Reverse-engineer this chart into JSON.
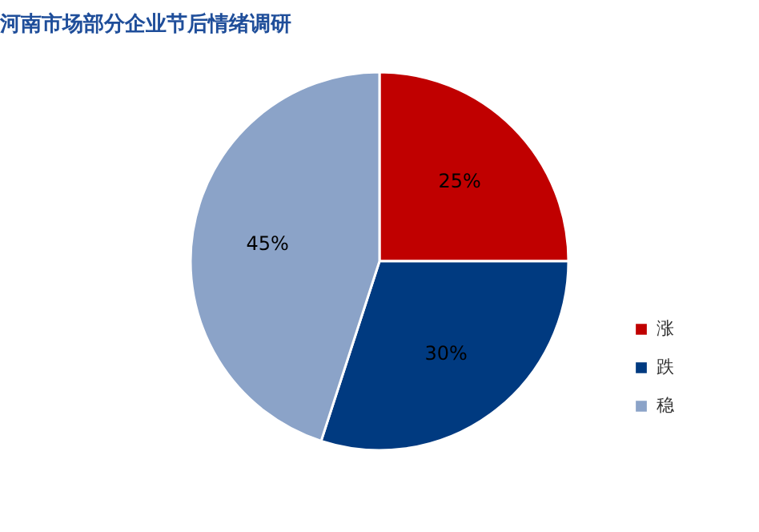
{
  "chart_data": {
    "type": "pie",
    "title": "河南市场部分企业节后情绪调研",
    "categories": [
      "涨",
      "跌",
      "稳"
    ],
    "values": [
      25,
      30,
      45
    ],
    "colors": [
      "#c00000",
      "#003a80",
      "#8ba3c8"
    ],
    "value_labels": [
      "25%",
      "30%",
      "45%"
    ],
    "legend": "right"
  }
}
